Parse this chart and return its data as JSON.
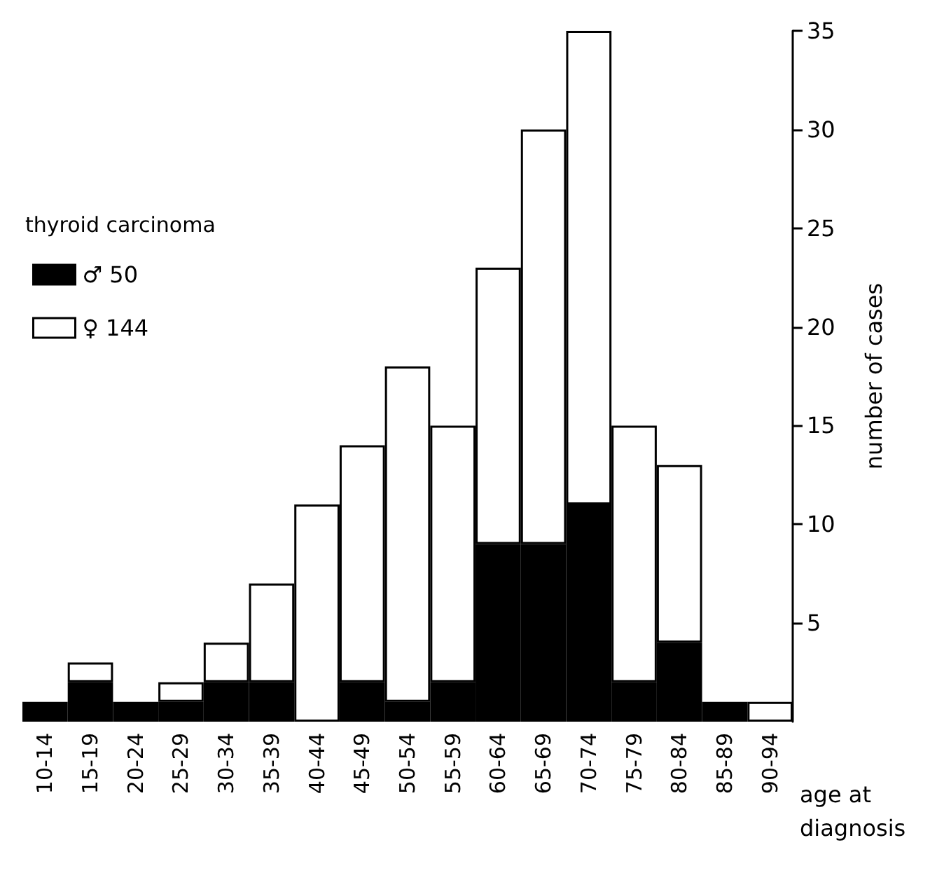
{
  "chart_data": {
    "type": "bar",
    "stacked": true,
    "xlabel": "age at diagnosis",
    "ylabel": "number of cases",
    "legend_title": "thyroid carcinoma",
    "legend": "top left",
    "grid": false,
    "categories": [
      "10-14",
      "15-19",
      "20-24",
      "25-29",
      "30-34",
      "35-39",
      "40-44",
      "45-49",
      "50-54",
      "55-59",
      "60-64",
      "65-69",
      "70-74",
      "75-79",
      "80-84",
      "85-89",
      "90-94"
    ],
    "series": [
      {
        "name": "♂ 50",
        "color": "#000000",
        "values": [
          1,
          2,
          1,
          1,
          2,
          2,
          0,
          2,
          1,
          2,
          9,
          9,
          11,
          2,
          4,
          1,
          0
        ]
      },
      {
        "name": "♀ 144",
        "color": "#ffffff",
        "values": [
          0,
          1,
          0,
          1,
          2,
          5,
          11,
          12,
          17,
          13,
          14,
          21,
          24,
          13,
          9,
          0,
          1
        ]
      }
    ],
    "ylim": [
      0,
      35
    ],
    "yticks": [
      5,
      10,
      15,
      20,
      25,
      30,
      35
    ]
  }
}
